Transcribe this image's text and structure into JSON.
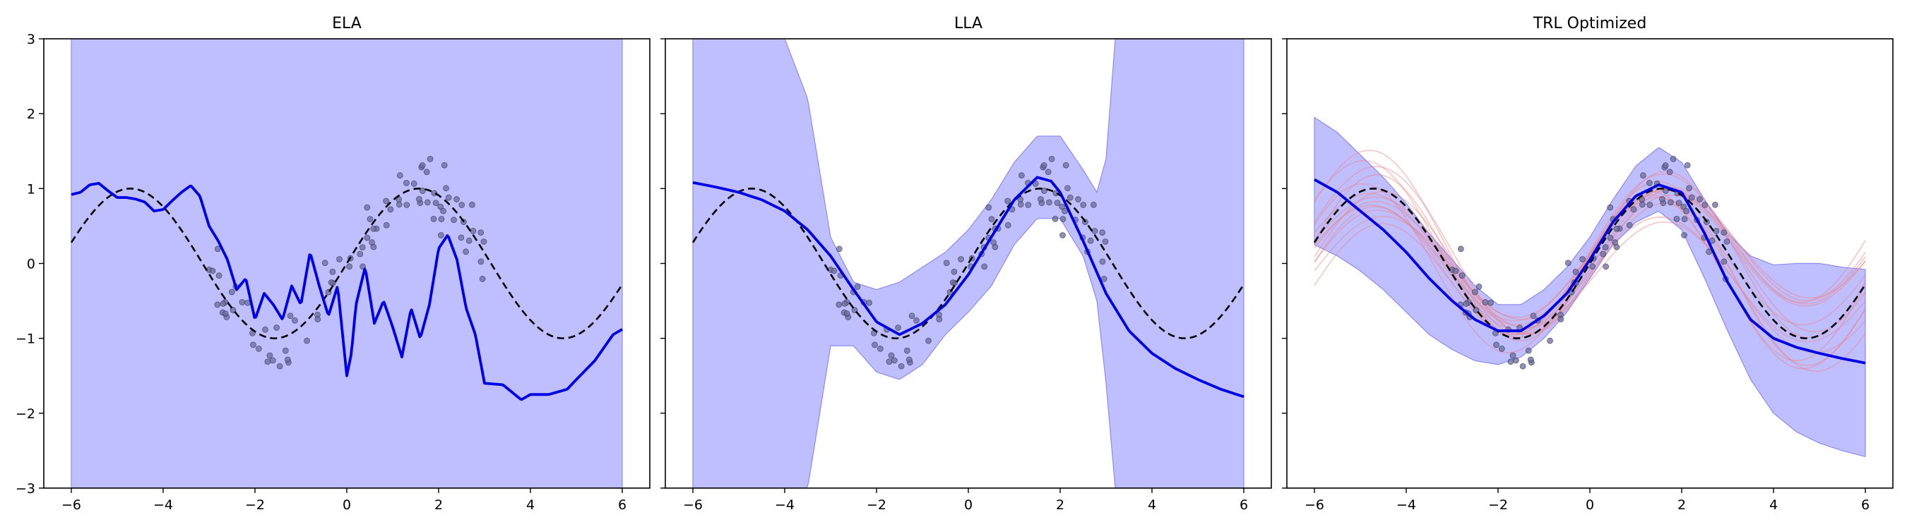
{
  "chart_data": [
    {
      "type": "line",
      "title": "ELA",
      "xlim": [
        -6.6,
        6.6
      ],
      "ylim": [
        -3,
        3
      ],
      "xticks": [
        "−6",
        "−4",
        "−2",
        "0",
        "2",
        "4",
        "6"
      ],
      "yticks": [
        "−3",
        "−2",
        "−1",
        "0",
        "1",
        "2",
        "3"
      ],
      "true_function": "dashed black sin(x)",
      "band": {
        "lower": -3,
        "upper": 3,
        "x_range": [
          -6,
          6
        ],
        "color": "#bfbfff"
      },
      "mean": {
        "color": "#0000e6",
        "x": [
          -6,
          -5.8,
          -5.6,
          -5.4,
          -5.2,
          -5,
          -4.8,
          -4.6,
          -4.4,
          -4.2,
          -4,
          -3.8,
          -3.6,
          -3.4,
          -3.2,
          -3.0,
          -2.8,
          -2.6,
          -2.4,
          -2.2,
          -2.0,
          -1.8,
          -1.6,
          -1.4,
          -1.2,
          -1.0,
          -0.8,
          -0.6,
          -0.4,
          -0.2,
          0,
          0.1,
          0.2,
          0.4,
          0.6,
          0.8,
          1.0,
          1.2,
          1.4,
          1.6,
          1.8,
          2.0,
          2.2,
          2.4,
          2.6,
          2.8,
          3.0,
          3.4,
          3.8,
          4.0,
          4.4,
          4.8,
          5.0,
          5.4,
          5.8,
          6.0
        ],
        "y": [
          0.92,
          0.95,
          1.05,
          1.07,
          0.97,
          0.88,
          0.88,
          0.86,
          0.82,
          0.7,
          0.72,
          0.84,
          0.95,
          1.04,
          0.9,
          0.5,
          0.3,
          0.05,
          -0.35,
          -0.2,
          -0.75,
          -0.4,
          -0.55,
          -0.75,
          -0.3,
          -0.55,
          0.15,
          -0.3,
          -0.7,
          -0.3,
          -1.5,
          -1.2,
          -0.55,
          -0.05,
          -0.8,
          -0.5,
          -0.85,
          -1.25,
          -0.6,
          -1.0,
          -0.55,
          0.2,
          0.38,
          0.05,
          -0.6,
          -0.95,
          -1.6,
          -1.62,
          -1.82,
          -1.75,
          -1.75,
          -1.68,
          -1.55,
          -1.3,
          -0.95,
          -0.88
        ]
      },
      "points": "noisy observations, x in [-3, 3]"
    },
    {
      "type": "line",
      "title": "LLA",
      "xlim": [
        -6.6,
        6.6
      ],
      "ylim": [
        -3,
        3
      ],
      "xticks": [
        "−6",
        "−4",
        "−2",
        "0",
        "2",
        "4",
        "6"
      ],
      "true_function": "dashed black sin(x)",
      "band": {
        "color": "#bfbfff",
        "x": [
          -6,
          -5.5,
          -5,
          -4.5,
          -4,
          -3.5,
          -3,
          -2.5,
          -2,
          -1.5,
          -1,
          -0.5,
          0,
          0.5,
          1,
          1.5,
          2,
          2.5,
          2.8,
          3,
          3.2,
          3.5,
          4,
          4.5,
          5,
          5.5,
          6
        ],
        "upper": [
          3,
          3,
          3,
          3,
          3,
          2.2,
          0.35,
          -0.25,
          -0.35,
          -0.25,
          -0.05,
          0.15,
          0.45,
          0.85,
          1.35,
          1.7,
          1.7,
          1.25,
          0.95,
          1.4,
          3,
          3,
          3,
          3,
          3,
          3,
          3
        ],
        "lower": [
          -3,
          -3,
          -3,
          -3,
          -3,
          -3,
          -1.1,
          -1.1,
          -1.45,
          -1.55,
          -1.35,
          -0.95,
          -0.65,
          -0.3,
          0.25,
          0.6,
          0.6,
          0.1,
          -0.5,
          -1.6,
          -3,
          -3,
          -3,
          -3,
          -3,
          -3,
          -3
        ]
      },
      "mean": {
        "color": "#0000e6",
        "x": [
          -6,
          -5.5,
          -5,
          -4.5,
          -4,
          -3.5,
          -3,
          -2.5,
          -2,
          -1.5,
          -1,
          -0.5,
          0,
          0.5,
          1,
          1.5,
          1.8,
          2,
          2.5,
          3,
          3.5,
          4,
          4.5,
          5,
          5.5,
          6
        ],
        "y": [
          1.08,
          1.02,
          0.95,
          0.85,
          0.7,
          0.45,
          0.1,
          -0.35,
          -0.78,
          -0.95,
          -0.8,
          -0.55,
          -0.15,
          0.35,
          0.85,
          1.15,
          1.1,
          0.95,
          0.3,
          -0.4,
          -0.9,
          -1.2,
          -1.4,
          -1.55,
          -1.68,
          -1.78
        ]
      },
      "points": "noisy observations, x in [-3, 3]"
    },
    {
      "type": "line",
      "title": "TRL Optimized",
      "xlim": [
        -6.6,
        6.6
      ],
      "ylim": [
        -3,
        3
      ],
      "xticks": [
        "−6",
        "−4",
        "−2",
        "0",
        "2",
        "4",
        "6"
      ],
      "true_function": "dashed black sin(x)",
      "band": {
        "color": "#bfbfff",
        "x": [
          -6,
          -5.5,
          -5,
          -4.5,
          -4,
          -3.5,
          -3,
          -2.5,
          -2,
          -1.5,
          -1,
          -0.5,
          0,
          0.5,
          1,
          1.5,
          2,
          2.5,
          3,
          3.5,
          4,
          4.5,
          5,
          5.5,
          6
        ],
        "upper": [
          1.95,
          1.75,
          1.45,
          1.15,
          0.8,
          0.4,
          0.05,
          -0.3,
          -0.55,
          -0.55,
          -0.35,
          -0.05,
          0.35,
          0.85,
          1.3,
          1.55,
          1.35,
          0.85,
          0.4,
          0.1,
          -0.02,
          0.0,
          0.0,
          -0.05,
          -0.08
        ],
        "lower": [
          0.25,
          0.1,
          -0.1,
          -0.35,
          -0.65,
          -0.95,
          -1.15,
          -1.3,
          -1.35,
          -1.25,
          -1.0,
          -0.65,
          -0.2,
          0.25,
          0.55,
          0.7,
          0.45,
          -0.2,
          -0.9,
          -1.55,
          -2.0,
          -2.25,
          -2.4,
          -2.5,
          -2.58
        ]
      },
      "mean": {
        "color": "#0000e6",
        "x": [
          -6,
          -5.5,
          -5,
          -4.5,
          -4,
          -3.5,
          -3,
          -2.5,
          -2,
          -1.5,
          -1,
          -0.5,
          0,
          0.5,
          1,
          1.5,
          2,
          2.5,
          3,
          3.5,
          4,
          4.5,
          5,
          5.5,
          6
        ],
        "y": [
          1.12,
          0.95,
          0.7,
          0.45,
          0.15,
          -0.2,
          -0.5,
          -0.75,
          -0.9,
          -0.9,
          -0.7,
          -0.4,
          0.05,
          0.55,
          0.9,
          1.05,
          0.95,
          0.4,
          -0.25,
          -0.75,
          -1.0,
          -1.12,
          -1.2,
          -1.27,
          -1.33
        ]
      },
      "samples": "thin red sampled functions",
      "points": "noisy observations, x in [-3, 3]"
    }
  ]
}
